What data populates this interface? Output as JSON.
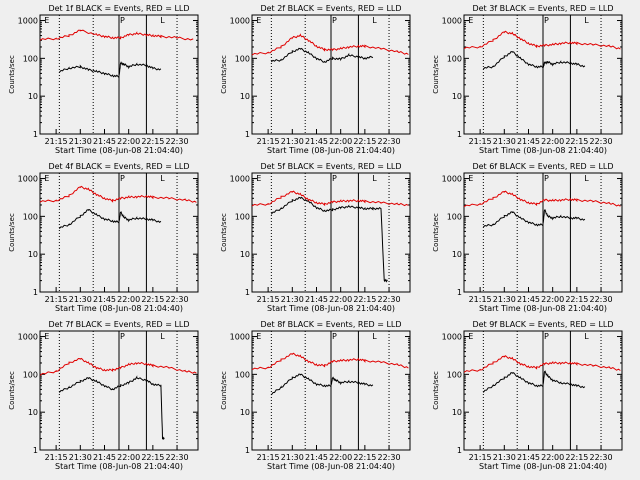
{
  "time_axis_label": "Start Time (08-Jun-08 21:04:40)",
  "x_tick_labels": [
    "21:15",
    "21:30",
    "21:45",
    "22:00",
    "22:15",
    "22:30"
  ],
  "y_axis_label": "Counts/sec",
  "y_tick_labels": [
    "1",
    "10",
    "100",
    "1000"
  ],
  "marker_labels": {
    "E": "E",
    "P": "P",
    "L": "L"
  },
  "colors": {
    "events": "#000000",
    "lld": "#e00000",
    "background": "#efefef"
  },
  "chart_data": [
    {
      "type": "line",
      "title": "Det 1f BLACK = Events, RED = LLD",
      "xlabel": "Start Time (08-Jun-08 21:04:40)",
      "ylabel": "Counts/sec",
      "log_y": true,
      "ylim": [
        1,
        1000
      ],
      "x_range_min": [
        0,
        98
      ],
      "series": [
        {
          "name": "Events",
          "color": "#000000",
          "x": [
            12,
            18,
            25,
            30,
            35,
            40,
            45,
            49,
            50,
            52,
            55,
            60,
            66,
            70,
            75
          ],
          "y": [
            45,
            55,
            60,
            50,
            45,
            40,
            35,
            33,
            75,
            70,
            60,
            70,
            65,
            55,
            50
          ]
        },
        {
          "name": "LLD",
          "color": "#e00000",
          "x": [
            0,
            10,
            18,
            25,
            35,
            40,
            45,
            50,
            55,
            60,
            66,
            70,
            75,
            85,
            95
          ],
          "y": [
            320,
            330,
            400,
            550,
            420,
            380,
            350,
            350,
            420,
            450,
            420,
            400,
            380,
            350,
            310
          ]
        }
      ]
    },
    {
      "type": "line",
      "title": "Det 2f BLACK = Events, RED = LLD",
      "xlabel": "Start Time (08-Jun-08 21:04:40)",
      "ylabel": "Counts/sec",
      "log_y": true,
      "ylim": [
        1,
        1000
      ],
      "x_range_min": [
        0,
        98
      ],
      "series": [
        {
          "name": "Events",
          "color": "#000000",
          "x": [
            12,
            18,
            25,
            30,
            35,
            40,
            45,
            50,
            55,
            60,
            66,
            70,
            75
          ],
          "y": [
            85,
            90,
            150,
            180,
            140,
            100,
            80,
            100,
            95,
            120,
            110,
            100,
            110
          ]
        },
        {
          "name": "LLD",
          "color": "#e00000",
          "x": [
            0,
            10,
            18,
            25,
            30,
            35,
            40,
            45,
            50,
            55,
            60,
            66,
            70,
            80,
            90,
            97
          ],
          "y": [
            130,
            140,
            200,
            350,
            400,
            300,
            210,
            170,
            170,
            180,
            200,
            210,
            210,
            180,
            150,
            130
          ]
        }
      ]
    },
    {
      "type": "line",
      "title": "Det 3f BLACK = Events, RED = LLD",
      "xlabel": "Start Time (08-Jun-08 21:04:40)",
      "ylabel": "Counts/sec",
      "log_y": true,
      "ylim": [
        1,
        1000
      ],
      "x_range_min": [
        0,
        98
      ],
      "series": [
        {
          "name": "Events",
          "color": "#000000",
          "x": [
            12,
            18,
            25,
            30,
            35,
            40,
            45,
            49,
            50,
            52,
            55,
            60,
            66,
            70,
            75
          ],
          "y": [
            55,
            60,
            110,
            150,
            100,
            70,
            60,
            60,
            75,
            80,
            70,
            80,
            75,
            70,
            60
          ]
        },
        {
          "name": "LLD",
          "color": "#e00000",
          "x": [
            0,
            10,
            18,
            25,
            30,
            35,
            40,
            45,
            50,
            55,
            60,
            66,
            70,
            80,
            90,
            97
          ],
          "y": [
            190,
            200,
            300,
            500,
            450,
            330,
            250,
            210,
            220,
            230,
            250,
            260,
            250,
            230,
            210,
            180
          ]
        }
      ]
    },
    {
      "type": "line",
      "title": "Det 4f BLACK = Events, RED = LLD",
      "xlabel": "Start Time (08-Jun-08 21:04:40)",
      "ylabel": "Counts/sec",
      "log_y": true,
      "ylim": [
        1,
        1000
      ],
      "x_range_min": [
        0,
        98
      ],
      "series": [
        {
          "name": "Events",
          "color": "#000000",
          "x": [
            12,
            18,
            25,
            30,
            35,
            40,
            45,
            49,
            50,
            52,
            55,
            60,
            66,
            70,
            75
          ],
          "y": [
            50,
            60,
            100,
            150,
            110,
            85,
            75,
            70,
            130,
            95,
            80,
            90,
            85,
            80,
            70
          ]
        },
        {
          "name": "LLD",
          "color": "#e00000",
          "x": [
            0,
            10,
            18,
            25,
            30,
            35,
            40,
            45,
            50,
            55,
            60,
            66,
            70,
            80,
            90,
            97
          ],
          "y": [
            250,
            260,
            350,
            600,
            520,
            380,
            300,
            260,
            300,
            320,
            330,
            340,
            320,
            300,
            270,
            240
          ]
        }
      ]
    },
    {
      "type": "line",
      "title": "Det 5f BLACK = Events, RED = LLD",
      "xlabel": "Start Time (08-Jun-08 21:04:40)",
      "ylabel": "Counts/sec",
      "log_y": true,
      "ylim": [
        1,
        1000
      ],
      "x_range_min": [
        0,
        98
      ],
      "series": [
        {
          "name": "Events",
          "color": "#000000",
          "x": [
            12,
            18,
            25,
            30,
            35,
            40,
            45,
            50,
            55,
            60,
            66,
            70,
            75,
            80,
            82,
            84
          ],
          "y": [
            120,
            160,
            260,
            310,
            250,
            170,
            140,
            150,
            170,
            180,
            170,
            160,
            160,
            160,
            2,
            2
          ]
        },
        {
          "name": "LLD",
          "color": "#e00000",
          "x": [
            0,
            10,
            18,
            25,
            30,
            35,
            40,
            45,
            50,
            55,
            60,
            66,
            70,
            80,
            90,
            97
          ],
          "y": [
            200,
            210,
            320,
            450,
            380,
            280,
            230,
            210,
            240,
            250,
            260,
            260,
            250,
            230,
            210,
            200
          ]
        }
      ]
    },
    {
      "type": "line",
      "title": "Det 6f BLACK = Events, RED = LLD",
      "xlabel": "Start Time (08-Jun-08 21:04:40)",
      "ylabel": "Counts/sec",
      "log_y": true,
      "ylim": [
        1,
        1000
      ],
      "x_range_min": [
        0,
        98
      ],
      "series": [
        {
          "name": "Events",
          "color": "#000000",
          "x": [
            12,
            18,
            25,
            30,
            35,
            40,
            45,
            49,
            50,
            52,
            55,
            60,
            66,
            70,
            75
          ],
          "y": [
            55,
            60,
            100,
            130,
            90,
            70,
            60,
            60,
            150,
            100,
            90,
            100,
            90,
            90,
            80
          ]
        },
        {
          "name": "LLD",
          "color": "#e00000",
          "x": [
            0,
            10,
            18,
            25,
            30,
            35,
            40,
            45,
            50,
            55,
            60,
            66,
            70,
            80,
            90,
            97
          ],
          "y": [
            190,
            210,
            300,
            450,
            380,
            280,
            230,
            210,
            270,
            260,
            270,
            280,
            270,
            250,
            220,
            190
          ]
        }
      ]
    },
    {
      "type": "line",
      "title": "Det 7f BLACK = Events, RED = LLD",
      "xlabel": "Start Time (08-Jun-08 21:04:40)",
      "ylabel": "Counts/sec",
      "log_y": true,
      "ylim": [
        1,
        1000
      ],
      "x_range_min": [
        0,
        98
      ],
      "series": [
        {
          "name": "Events",
          "color": "#000000",
          "x": [
            12,
            18,
            25,
            30,
            35,
            40,
            45,
            50,
            55,
            60,
            66,
            70,
            75,
            76,
            77
          ],
          "y": [
            35,
            45,
            65,
            80,
            65,
            50,
            40,
            50,
            60,
            80,
            70,
            55,
            50,
            2,
            2
          ]
        },
        {
          "name": "LLD",
          "color": "#e00000",
          "x": [
            0,
            10,
            18,
            25,
            30,
            35,
            40,
            45,
            50,
            55,
            60,
            66,
            70,
            80,
            90,
            97
          ],
          "y": [
            100,
            120,
            200,
            260,
            200,
            150,
            130,
            130,
            150,
            180,
            200,
            190,
            170,
            150,
            120,
            110
          ]
        }
      ]
    },
    {
      "type": "line",
      "title": "Det 8f BLACK = Events, RED = LLD",
      "xlabel": "Start Time (08-Jun-08 21:04:40)",
      "ylabel": "Counts/sec",
      "log_y": true,
      "ylim": [
        1,
        1000
      ],
      "x_range_min": [
        0,
        98
      ],
      "series": [
        {
          "name": "Events",
          "color": "#000000",
          "x": [
            12,
            18,
            25,
            30,
            35,
            40,
            45,
            49,
            50,
            52,
            55,
            60,
            66,
            70,
            75
          ],
          "y": [
            30,
            45,
            80,
            100,
            75,
            55,
            50,
            50,
            80,
            70,
            60,
            65,
            60,
            55,
            50
          ]
        },
        {
          "name": "LLD",
          "color": "#e00000",
          "x": [
            0,
            10,
            18,
            25,
            30,
            35,
            40,
            45,
            50,
            55,
            60,
            66,
            70,
            80,
            90,
            97
          ],
          "y": [
            140,
            150,
            240,
            350,
            300,
            220,
            180,
            170,
            220,
            230,
            240,
            250,
            230,
            210,
            180,
            150
          ]
        }
      ]
    },
    {
      "type": "line",
      "title": "Det 9f BLACK = Events, RED = LLD",
      "xlabel": "Start Time (08-Jun-08 21:04:40)",
      "ylabel": "Counts/sec",
      "log_y": true,
      "ylim": [
        1,
        1000
      ],
      "x_range_min": [
        0,
        98
      ],
      "series": [
        {
          "name": "Events",
          "color": "#000000",
          "x": [
            12,
            18,
            25,
            30,
            35,
            40,
            45,
            49,
            50,
            52,
            55,
            60,
            66,
            70,
            75
          ],
          "y": [
            35,
            50,
            80,
            110,
            80,
            60,
            50,
            50,
            120,
            90,
            70,
            60,
            55,
            50,
            45
          ]
        },
        {
          "name": "LLD",
          "color": "#e00000",
          "x": [
            0,
            10,
            18,
            25,
            30,
            35,
            40,
            45,
            50,
            55,
            60,
            66,
            70,
            80,
            90,
            97
          ],
          "y": [
            120,
            130,
            200,
            300,
            260,
            190,
            160,
            150,
            190,
            200,
            200,
            200,
            190,
            170,
            150,
            130
          ]
        }
      ]
    }
  ]
}
